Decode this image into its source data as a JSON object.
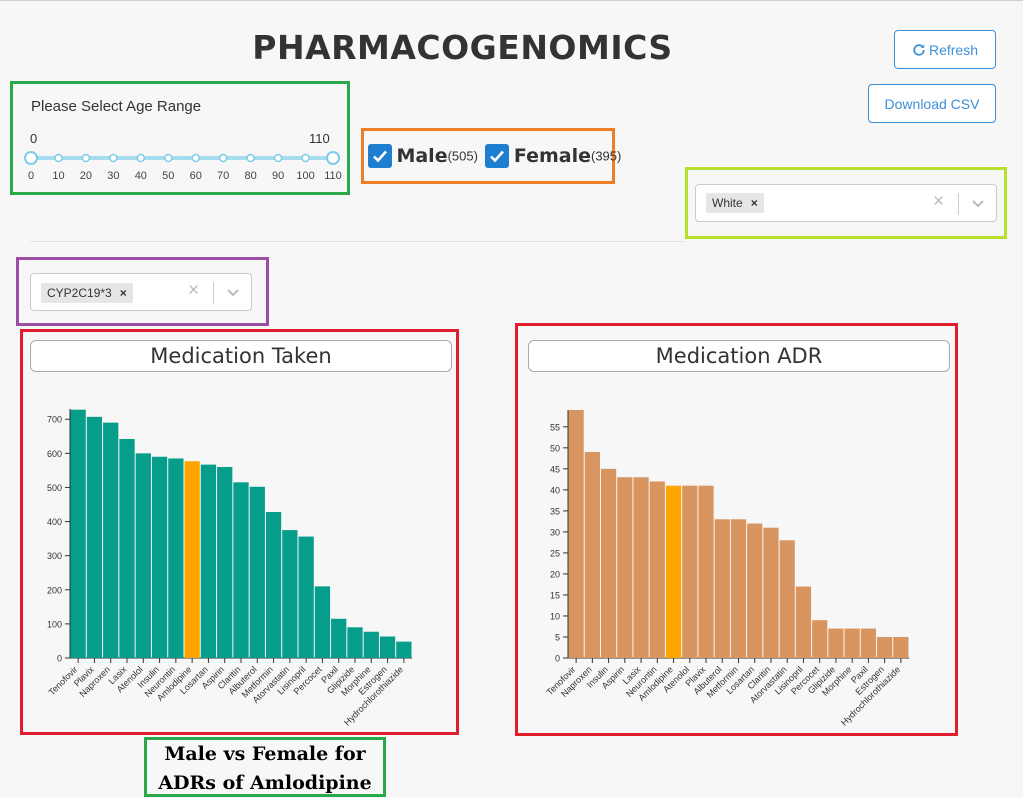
{
  "header": {
    "title": "PHARMACOGENOMICS"
  },
  "toolbar": {
    "refresh_label": "Refresh",
    "download_label": "Download CSV"
  },
  "age_filter": {
    "label": "Please Select Age Range",
    "min_value": "0",
    "max_value": "110",
    "range": [
      0,
      110
    ],
    "ticks": [
      "0",
      "10",
      "20",
      "30",
      "40",
      "50",
      "60",
      "70",
      "80",
      "90",
      "100",
      "110"
    ]
  },
  "gender_filter": {
    "male_label": "Male",
    "male_count": "(505)",
    "female_label": "Female",
    "female_count": "(395)"
  },
  "race_filter": {
    "selected": "White"
  },
  "gene_filter": {
    "selected": "CYP2C19*3"
  },
  "caption": {
    "line1": "Male vs Female for",
    "line2": "ADRs of Amlodipine"
  },
  "colors": {
    "taken_bar": "#069e8a",
    "adr_bar": "#d99560",
    "highlight": "#ffa500",
    "green_box": "#2aa84a",
    "orange_box": "#f07e26",
    "lime_box": "#b6e02b",
    "purple_box": "#9b4ea3",
    "red_box": "#e31e2c"
  },
  "chart_data": [
    {
      "type": "bar",
      "title": "Medication Taken",
      "categories": [
        "Tenofovir",
        "Plavix",
        "Naproxen",
        "Lasix",
        "Atenolol",
        "Insulin",
        "Neurontin",
        "Amlodipine",
        "Losartan",
        "Aspirin",
        "Claritin",
        "Albuterol",
        "Metformin",
        "Atorvastatin",
        "Lisinopril",
        "Percocet",
        "Paxil",
        "Glipizide",
        "Morphine",
        "Estrogen",
        "Hydrochlorothiazide"
      ],
      "values": [
        728,
        707,
        690,
        642,
        600,
        590,
        585,
        577,
        567,
        560,
        515,
        502,
        428,
        375,
        356,
        210,
        115,
        90,
        77,
        63,
        48
      ],
      "highlight": "Amlodipine",
      "yticks": [
        0,
        100,
        200,
        300,
        400,
        500,
        600,
        700
      ],
      "ylim": [
        0,
        730
      ],
      "xlabel": "",
      "ylabel": ""
    },
    {
      "type": "bar",
      "title": "Medication ADR",
      "categories": [
        "Tenofovir",
        "Naproxen",
        "Insulin",
        "Aspirin",
        "Lasix",
        "Neurontin",
        "Amlodipine",
        "Atenolol",
        "Plavix",
        "Albuterol",
        "Metformin",
        "Losartan",
        "Claritin",
        "Atorvastatin",
        "Lisinopril",
        "Percocet",
        "Glipizide",
        "Morphine",
        "Paxil",
        "Estrogen",
        "Hydrochlorothiazide"
      ],
      "values": [
        59,
        49,
        45,
        43,
        43,
        42,
        41,
        41,
        41,
        33,
        33,
        32,
        31,
        28,
        17,
        9,
        7,
        7,
        7,
        5,
        5
      ],
      "highlight": "Amlodipine",
      "yticks": [
        0,
        5,
        10,
        15,
        20,
        25,
        30,
        35,
        40,
        45,
        50,
        55
      ],
      "ylim": [
        0,
        59
      ],
      "xlabel": "",
      "ylabel": ""
    }
  ]
}
